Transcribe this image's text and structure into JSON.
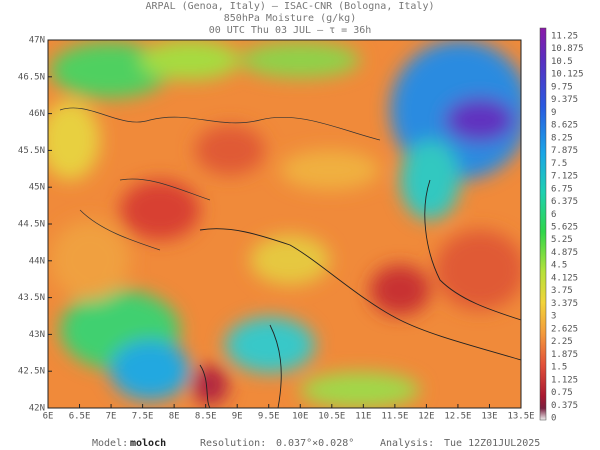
{
  "header": {
    "lines": [
      "ARPAL (Genoa, Italy)  –  ISAC-CNR (Bologna, Italy)",
      "850hPa Moisture (g/kg)",
      "00 UTC Thu 03 JUL  –  τ = 36h"
    ]
  },
  "map": {
    "lat_labels": [
      "47N",
      "46.5N",
      "46N",
      "45.5N",
      "45N",
      "44.5N",
      "44N",
      "43.5N",
      "43N",
      "42.5N",
      "42N"
    ],
    "lon_labels": [
      "6E",
      "6.5E",
      "7E",
      "7.5E",
      "8E",
      "8.5E",
      "9E",
      "9.5E",
      "10E",
      "10.5E",
      "11E",
      "11.5E",
      "12E",
      "12.5E",
      "13E",
      "13.5E"
    ]
  },
  "colorbar": {
    "labels": [
      "11.25",
      "10.875",
      "10.5",
      "10.125",
      "9.75",
      "9.375",
      "9",
      "8.625",
      "8.25",
      "7.875",
      "7.5",
      "7.125",
      "6.75",
      "6.375",
      "6",
      "5.625",
      "5.25",
      "4.875",
      "4.5",
      "4.125",
      "3.75",
      "3.375",
      "3",
      "2.625",
      "2.25",
      "1.875",
      "1.5",
      "1.125",
      "0.75",
      "0.375",
      "0"
    ]
  },
  "footer": {
    "model_label": "Model:",
    "model": "moloch",
    "resolution_label": "Resolution:",
    "resolution": "0.037°×0.028°",
    "analysis_label": "Analysis:",
    "analysis": "Tue 12Z01JUL2025"
  }
}
